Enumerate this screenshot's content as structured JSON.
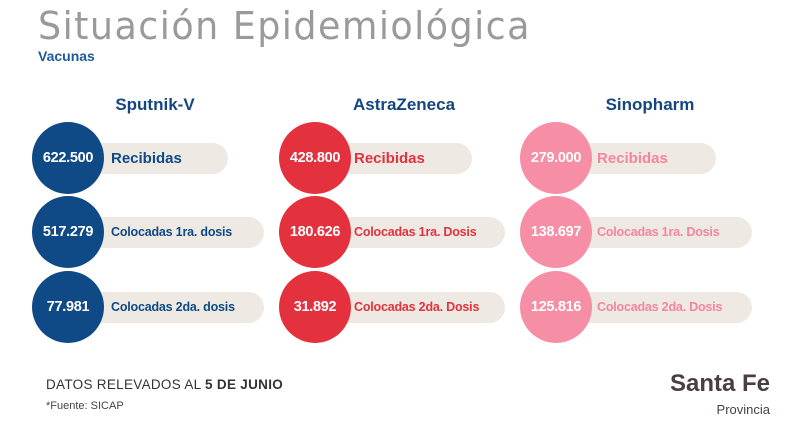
{
  "header": {
    "title": "Situación Epidemiológica",
    "subtitle": "Vacunas"
  },
  "vaccines": [
    {
      "name": "Sputnik-V",
      "rows": [
        {
          "value": "622.500",
          "label": "Recibidas"
        },
        {
          "value": "517.279",
          "label": "Colocadas 1ra. dosis"
        },
        {
          "value": "77.981",
          "label": "Colocadas 2da. dosis"
        }
      ],
      "color": "#0f4a86"
    },
    {
      "name": "AstraZeneca",
      "rows": [
        {
          "value": "428.800",
          "label": "Recibidas"
        },
        {
          "value": "180.626",
          "label": "Colocadas 1ra. Dosis"
        },
        {
          "value": "31.892",
          "label": "Colocadas 2da. Dosis"
        }
      ],
      "color": "#e3313d"
    },
    {
      "name": "Sinopharm",
      "rows": [
        {
          "value": "279.000",
          "label": "Recibidas"
        },
        {
          "value": "138.697",
          "label": "Colocadas 1ra. Dosis"
        },
        {
          "value": "125.816",
          "label": "Colocadas 2da. Dosis"
        }
      ],
      "color": "#f68fa6"
    }
  ],
  "footer": {
    "prefix": "DATOS RELEVADOS AL",
    "date": "5 DE JUNIO",
    "source": "*Fuente: SICAP"
  },
  "logo": {
    "main": "Santa Fe",
    "sub": "Provincia"
  }
}
